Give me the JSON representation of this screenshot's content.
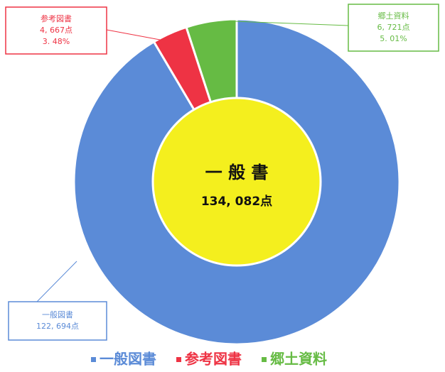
{
  "chart_data": {
    "type": "donut",
    "categories": [
      "一般図書",
      "参考図書",
      "郷土資料"
    ],
    "values": [
      122694,
      4667,
      6721
    ],
    "value_labels": [
      "122, 694点",
      "4, 667点",
      "6, 721点"
    ],
    "percent_labels": [
      null,
      "3. 48%",
      "5. 01%"
    ],
    "colors": [
      "#5b8bd7",
      "#ee3344",
      "#66bb44"
    ],
    "center_title": "一 般 書",
    "center_label": "134, 082点",
    "center_color": "#f4ef1e",
    "legend": "bottom"
  }
}
